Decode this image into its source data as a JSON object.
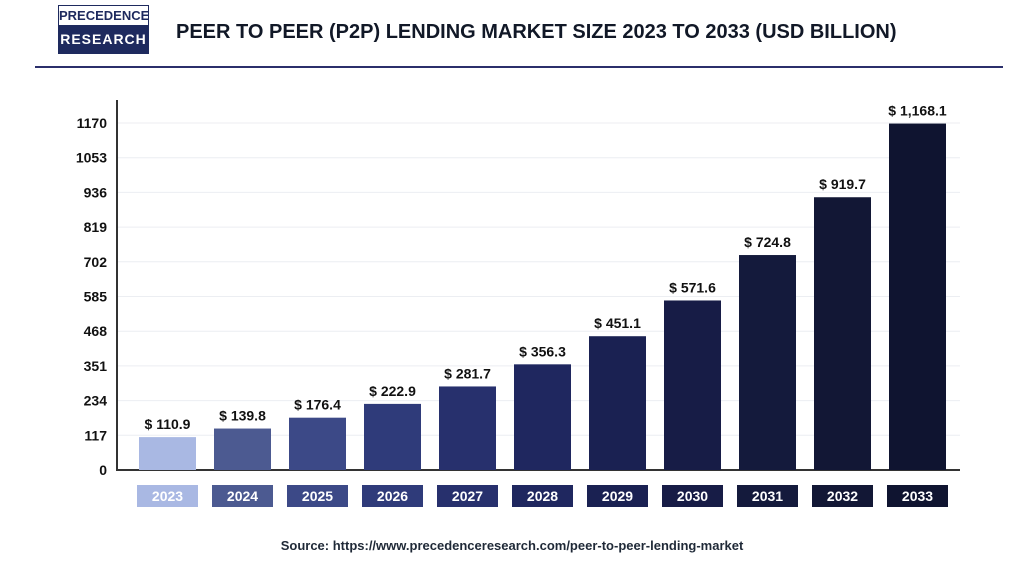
{
  "logo": {
    "line1": "PRECEDENCE",
    "line2": "RESEARCH"
  },
  "title": "PEER TO PEER (P2P) LENDING MARKET SIZE 2023 TO 2033 (USD BILLION)",
  "source": "Source: https://www.precedenceresearch.com/peer-to-peer-lending-market",
  "chart_data": {
    "type": "bar",
    "title": "PEER TO PEER (P2P) LENDING MARKET SIZE 2023 TO 2033 (USD BILLION)",
    "categories": [
      "2023",
      "2024",
      "2025",
      "2026",
      "2027",
      "2028",
      "2029",
      "2030",
      "2031",
      "2032",
      "2033"
    ],
    "values": [
      110.9,
      139.8,
      176.4,
      222.9,
      281.7,
      356.3,
      451.1,
      571.6,
      724.8,
      919.7,
      1168.1
    ],
    "data_labels": [
      "$ 110.9",
      "$ 139.8",
      "$ 176.4",
      "$ 222.9",
      "$ 281.7",
      "$ 356.3",
      "$ 451.1",
      "$ 571.6",
      "$ 724.8",
      "$ 919.7",
      "$ 1,168.1"
    ],
    "yticks": [
      0,
      117,
      234,
      351,
      468,
      585,
      702,
      819,
      936,
      1053,
      1170
    ],
    "ylim": [
      0,
      1170
    ],
    "grid": true,
    "colors": [
      "#a9b8e3",
      "#4c5a91",
      "#3c4987",
      "#2f3b7a",
      "#27306d",
      "#1f275f",
      "#1a2152",
      "#171c46",
      "#141a3c",
      "#121735",
      "#0f1430"
    ]
  }
}
